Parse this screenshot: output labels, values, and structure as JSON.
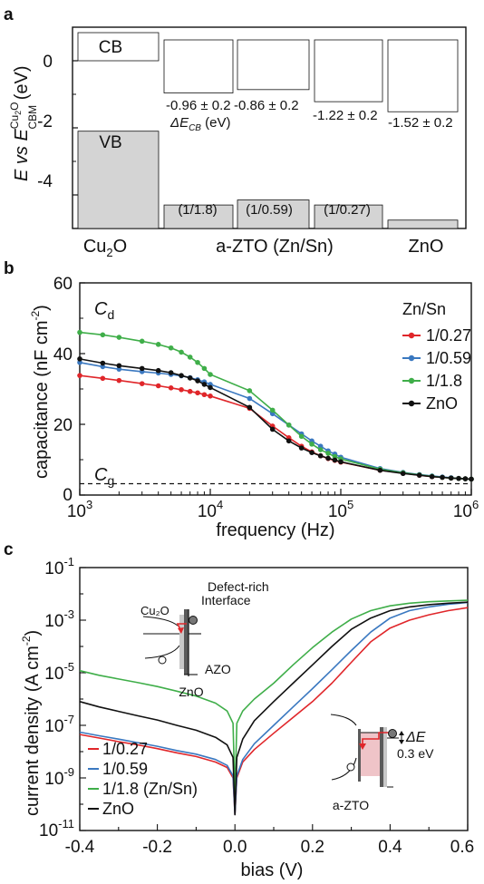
{
  "panels": {
    "a": {
      "letter": "a",
      "ylabel_main": "E vs E",
      "ylabel_sup": "Cu",
      "ylabel_sup_sub": "2",
      "ylabel_sup_tail": "O",
      "ylabel_sub": "CBM",
      "ylabel_unit": " (eV)",
      "cb_label": "CB",
      "vb_label": "VB",
      "xcat_cu2o": "Cu",
      "xcat_cu2o_sub": "2",
      "xcat_cu2o_tail": "O",
      "xcat_azto": "a-ZTO (Zn/Sn)",
      "xcat_zno": "ZnO",
      "delta_label": "ΔE",
      "delta_sub": "CB",
      "delta_unit": " (eV)",
      "ratio_labels": [
        "(1/1.8)",
        "(1/0.59)",
        "(1/0.27)"
      ],
      "offset_labels": [
        "-0.96 ± 0.2",
        "-0.86 ± 0.2",
        "-1.22 ± 0.2",
        "-1.52 ± 0.2"
      ],
      "yticks": [
        "0",
        "-2",
        "-4"
      ]
    },
    "b": {
      "letter": "b",
      "xlabel": "frequency (Hz)",
      "ylabel": "capacitance (nF cm",
      "ylabel_sup": "-2",
      "ylabel_tail": ")",
      "yticks": [
        "60",
        "40",
        "20",
        "0"
      ],
      "xtick_base": "10",
      "xtick_exps": [
        "3",
        "4",
        "5",
        "6"
      ],
      "cd_label": "C",
      "cd_sub": "d",
      "cg_label": "C",
      "cg_sub": "g",
      "legend_title": "Zn/Sn"
    },
    "c": {
      "letter": "c",
      "xlabel": "bias (V)",
      "ylabel": "current density (A cm",
      "ylabel_sup": "-2",
      "ylabel_tail": ")",
      "xticks": [
        "-0.4",
        "-0.2",
        "0.0",
        "0.2",
        "0.4",
        "0.6"
      ],
      "ytick_base": "10",
      "ytick_exps": [
        "-1",
        "-3",
        "-5",
        "-7",
        "-9",
        "-11"
      ],
      "inset1": {
        "title": "Defect-rich",
        "title2": "Interface",
        "left": "Cu₂O",
        "right": "AZO",
        "bottom": "ZnO"
      },
      "inset2": {
        "delta": "ΔE",
        "value": "0.3 eV",
        "bottom": "a-ZTO"
      },
      "legend": [
        "1/0.27",
        "1/0.59",
        "1/1.8 (Zn/Sn)",
        "ZnO"
      ]
    }
  },
  "colors": {
    "red": "#e0262a",
    "blue": "#3a78c0",
    "green": "#3fae49",
    "black": "#111111",
    "bar_fill": "#d4d4d4",
    "gray_text": "#9a9a9a",
    "pink": "#efc4c8"
  },
  "chart_data": [
    {
      "type": "bar",
      "panel": "a",
      "ylabel": "E vs E_CBM^Cu2O (eV)",
      "ylim": [
        -5,
        1
      ],
      "yticks": [
        0,
        -2,
        -4
      ],
      "categories": [
        "Cu2O",
        "a-ZTO (1/1.8)",
        "a-ZTO (1/0.59)",
        "a-ZTO (1/0.27)",
        "ZnO"
      ],
      "conduction_band": [
        {
          "name": "Cu2O",
          "value": 0
        },
        {
          "name": "1/1.8",
          "value": -0.96,
          "err": 0.2
        },
        {
          "name": "1/0.59",
          "value": -0.86,
          "err": 0.2
        },
        {
          "name": "1/0.27",
          "value": -1.22,
          "err": 0.2
        },
        {
          "name": "ZnO",
          "value": -1.52,
          "err": 0.2
        }
      ],
      "valence_band": [
        {
          "name": "Cu2O",
          "value": -2.1
        },
        {
          "name": "1/1.8",
          "value": -4.3
        },
        {
          "name": "1/0.59",
          "value": -4.15
        },
        {
          "name": "1/0.27",
          "value": -4.3
        },
        {
          "name": "ZnO",
          "value": -4.75
        }
      ]
    },
    {
      "type": "line",
      "panel": "b",
      "xlabel": "frequency (Hz)",
      "ylabel": "capacitance (nF cm-2)",
      "xscale": "log",
      "xlim": [
        1000,
        1000000
      ],
      "ylim": [
        0,
        60
      ],
      "cg_level": 3.2,
      "x": [
        1000,
        1500,
        2000,
        3000,
        4000,
        5000,
        6000,
        7000,
        8000,
        9000,
        10000,
        20000,
        30000,
        40000,
        50000,
        60000,
        70000,
        80000,
        90000,
        100000,
        200000,
        300000,
        400000,
        500000,
        600000,
        700000,
        800000,
        900000,
        1000000
      ],
      "series": [
        {
          "name": "1/0.27",
          "color": "#e0262a",
          "values": [
            33.8,
            33.0,
            32.4,
            31.5,
            30.9,
            30.3,
            29.8,
            29.3,
            28.9,
            28.4,
            28.0,
            24.5,
            19.5,
            16.2,
            13.8,
            12.2,
            11.1,
            10.3,
            9.8,
            9.3,
            7.0,
            6.2,
            5.6,
            5.2,
            5.0,
            4.8,
            4.7,
            4.6,
            4.5
          ]
        },
        {
          "name": "1/0.59",
          "color": "#3a78c0",
          "values": [
            37.5,
            36.3,
            35.6,
            34.9,
            34.5,
            34.1,
            33.7,
            33.2,
            32.6,
            32.0,
            31.3,
            27.3,
            23.0,
            19.8,
            17.3,
            15.3,
            13.8,
            12.5,
            11.6,
            10.7,
            7.5,
            6.4,
            5.8,
            5.4,
            5.1,
            4.9,
            4.7,
            4.6,
            4.5
          ]
        },
        {
          "name": "1/1.8",
          "color": "#3fae49",
          "values": [
            46.0,
            45.3,
            44.6,
            43.5,
            42.6,
            41.6,
            40.4,
            39.0,
            37.5,
            35.8,
            34.1,
            29.5,
            24.0,
            19.8,
            16.6,
            14.4,
            12.8,
            11.8,
            10.9,
            10.2,
            7.3,
            6.3,
            5.7,
            5.3,
            5.0,
            4.8,
            4.7,
            4.6,
            4.5
          ]
        },
        {
          "name": "ZnO",
          "color": "#111111",
          "values": [
            38.5,
            37.3,
            36.6,
            35.8,
            35.2,
            34.6,
            33.8,
            33.1,
            32.3,
            31.3,
            30.4,
            24.8,
            18.6,
            15.3,
            13.3,
            12.0,
            11.1,
            10.4,
            9.9,
            9.4,
            7.0,
            6.1,
            5.6,
            5.2,
            5.0,
            4.8,
            4.7,
            4.6,
            4.5
          ]
        }
      ]
    },
    {
      "type": "line",
      "panel": "c",
      "xlabel": "bias (V)",
      "ylabel": "current density (A cm-2)",
      "yscale": "log",
      "xlim": [
        -0.4,
        0.6
      ],
      "ylim": [
        1e-11,
        0.1
      ],
      "x": [
        -0.4,
        -0.35,
        -0.3,
        -0.25,
        -0.2,
        -0.15,
        -0.1,
        -0.05,
        -0.02,
        -0.005,
        0.0,
        0.005,
        0.02,
        0.05,
        0.1,
        0.15,
        0.2,
        0.25,
        0.3,
        0.35,
        0.4,
        0.45,
        0.5,
        0.55,
        0.6
      ],
      "series": [
        {
          "name": "1/0.27",
          "color": "#e0262a",
          "values": [
            4.5e-08,
            3.3e-08,
            2.4e-08,
            1.8e-08,
            1.3e-08,
            9e-09,
            6.5e-09,
            4e-09,
            2.5e-09,
            1e-09,
            4e-11,
            1e-09,
            4e-09,
            1.2e-08,
            5e-08,
            2e-07,
            8e-07,
            4e-06,
            2.5e-05,
            0.00015,
            0.0005,
            0.001,
            0.0016,
            0.0023,
            0.003
          ]
        },
        {
          "name": "1/0.59",
          "color": "#3a78c0",
          "values": [
            5.5e-08,
            4e-08,
            3e-08,
            2.2e-08,
            1.6e-08,
            1.1e-08,
            8e-09,
            5e-09,
            3e-09,
            1.2e-09,
            4e-11,
            1.2e-09,
            5e-09,
            2e-08,
            1e-07,
            5e-07,
            2.5e-06,
            1.3e-05,
            7e-05,
            0.00035,
            0.0012,
            0.0023,
            0.0032,
            0.004,
            0.0047
          ]
        },
        {
          "name": "1/1.8 (Zn/Sn)",
          "color": "#3fae49",
          "values": [
            1.2e-05,
            8e-06,
            5.8e-06,
            4.2e-06,
            3e-06,
            2e-06,
            1.3e-06,
            7e-07,
            3.5e-07,
            1.2e-07,
            2e-10,
            1.2e-07,
            3.5e-07,
            1e-06,
            4e-06,
            2e-05,
            9e-05,
            0.00035,
            0.0011,
            0.0023,
            0.0035,
            0.0044,
            0.005,
            0.0054,
            0.0057
          ]
        },
        {
          "name": "ZnO",
          "color": "#111111",
          "values": [
            8e-07,
            5e-07,
            3.4e-07,
            2.3e-07,
            1.6e-07,
            1e-07,
            6.5e-08,
            3.5e-08,
            1.8e-08,
            6e-09,
            4e-11,
            6e-09,
            3e-08,
            1.5e-07,
            8e-07,
            4e-06,
            2e-05,
            0.0001,
            0.00045,
            0.0012,
            0.0023,
            0.0032,
            0.0039,
            0.0044,
            0.0048
          ]
        }
      ]
    }
  ]
}
